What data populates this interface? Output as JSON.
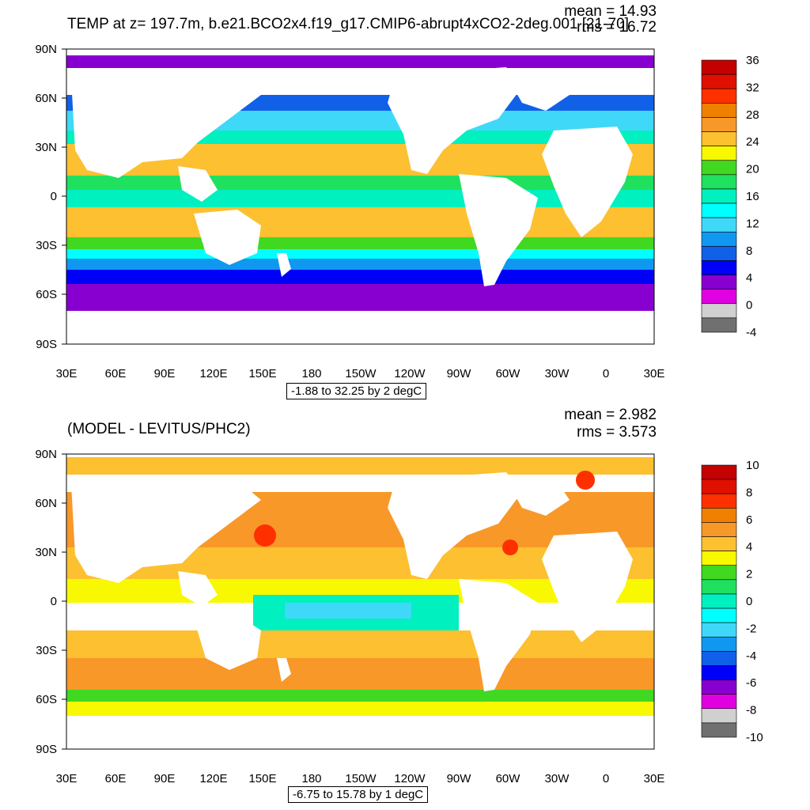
{
  "top": {
    "title": "TEMP at z= 197.7m, b.e21.BCO2x4.f19_g17.CMIP6-abrupt4xCO2-2deg.001 [21-70]",
    "mean": "mean = 14.93",
    "rms": "rms = 16.72",
    "range_note": "-1.88 to 32.25 by 2 degC",
    "colorbar": {
      "labels": [
        "36",
        "32",
        "28",
        "24",
        "20",
        "16",
        "12",
        "8",
        "4",
        "0",
        "-4"
      ],
      "colors": [
        "#c40000",
        "#e01000",
        "#ff3000",
        "#f08000",
        "#f89828",
        "#fcc030",
        "#f8f800",
        "#40d820",
        "#20e060",
        "#00f0c0",
        "#00ffff",
        "#40d8f8",
        "#1098f0",
        "#1060e8",
        "#0000f8",
        "#8800d0",
        "#e000e0",
        "#d0d0d0",
        "#707070"
      ]
    },
    "field": "temperature"
  },
  "bottom": {
    "title": "(MODEL - LEVITUS/PHC2)",
    "mean": "mean = 2.982",
    "rms": "rms = 3.573",
    "range_note": "-6.75 to 15.78 by 1 degC",
    "colorbar": {
      "labels": [
        "10",
        "8",
        "6",
        "4",
        "2",
        "0",
        "-2",
        "-4",
        "-6",
        "-8",
        "-10"
      ],
      "colors": [
        "#c40000",
        "#e01000",
        "#ff3000",
        "#f08000",
        "#f89828",
        "#fcc030",
        "#f8f800",
        "#40d820",
        "#20e060",
        "#00f0c0",
        "#00ffff",
        "#40d8f8",
        "#1098f0",
        "#1060e8",
        "#0000f8",
        "#8800d0",
        "#e000e0",
        "#d0d0d0",
        "#707070"
      ]
    },
    "field": "difference"
  },
  "lat_labels": [
    "90N",
    "60N",
    "30N",
    "0",
    "30S",
    "60S",
    "90S"
  ],
  "lon_labels": [
    "30E",
    "60E",
    "90E",
    "120E",
    "150E",
    "180",
    "150W",
    "120W",
    "90W",
    "60W",
    "30W",
    "0",
    "30E"
  ]
}
